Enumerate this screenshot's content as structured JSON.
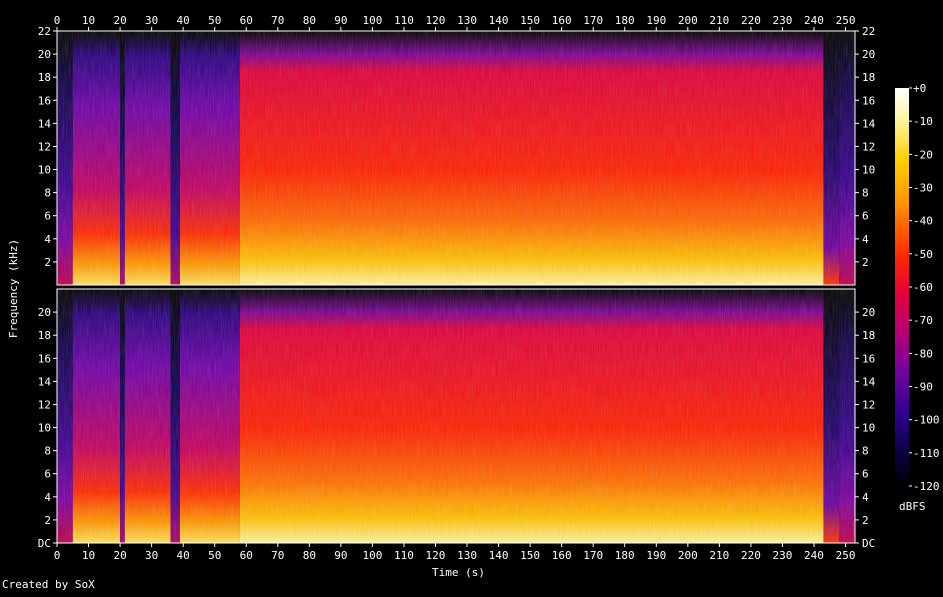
{
  "chart_data": {
    "type": "heatmap",
    "title": "",
    "xlabel": "Time (s)",
    "ylabel": "Frequency (kHz)",
    "x_ticks": [
      "0",
      "10",
      "20",
      "30",
      "40",
      "50",
      "60",
      "70",
      "80",
      "90",
      "100",
      "110",
      "120",
      "130",
      "140",
      "150",
      "160",
      "170",
      "180",
      "190",
      "200",
      "210",
      "220",
      "230",
      "240",
      "250"
    ],
    "xlim": [
      0,
      253
    ],
    "y_ticks_upper": [
      "2",
      "4",
      "6",
      "8",
      "10",
      "12",
      "14",
      "16",
      "18",
      "20",
      "22"
    ],
    "y_ticks_lower": [
      "DC",
      "2",
      "4",
      "6",
      "8",
      "10",
      "12",
      "14",
      "16",
      "18",
      "20"
    ],
    "ylim": [
      0,
      22
    ],
    "channels": 2,
    "colorbar": {
      "label": "dBFS",
      "ticks": [
        "+0",
        "-10",
        "-20",
        "-30",
        "-40",
        "-50",
        "-60",
        "-70",
        "-80",
        "-90",
        "-100",
        "-110",
        "-120"
      ],
      "range": [
        -120,
        0
      ]
    },
    "segments": [
      {
        "start": 0,
        "end": 5,
        "level": "quiet"
      },
      {
        "start": 5,
        "end": 20,
        "level": "moderate"
      },
      {
        "start": 20,
        "end": 21.5,
        "level": "dip"
      },
      {
        "start": 21.5,
        "end": 36,
        "level": "moderate"
      },
      {
        "start": 36,
        "end": 39,
        "level": "dip"
      },
      {
        "start": 39,
        "end": 58,
        "level": "moderate"
      },
      {
        "start": 58,
        "end": 243,
        "level": "loud"
      },
      {
        "start": 243,
        "end": 248,
        "level": "fade"
      },
      {
        "start": 248,
        "end": 253,
        "level": "quiet"
      }
    ]
  },
  "footer": {
    "credit": "Created by SoX"
  }
}
